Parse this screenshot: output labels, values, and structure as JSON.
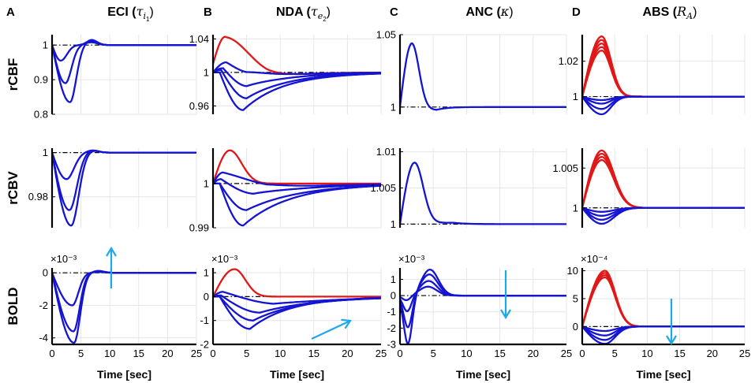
{
  "panel_labels": [
    "A",
    "B",
    "C",
    "D"
  ],
  "column_titles": [
    {
      "text": "ECI (",
      "sym": "τ",
      "sub": "i",
      "subsub": "1",
      "close": ")"
    },
    {
      "text": "NDA (",
      "sym": "τ",
      "sub": "e",
      "subsub": "2",
      "close": ")"
    },
    {
      "text": "ANC (",
      "sym": "κ",
      "sub": "",
      "subsub": "",
      "close": ")"
    },
    {
      "text": "ABS (",
      "sym": "R",
      "sub": "A",
      "subsub": "",
      "close": ")"
    }
  ],
  "row_labels": [
    "rCBF",
    "rCBV",
    "BOLD"
  ],
  "xlabel": "Time [sec]",
  "colors": {
    "blue": "#1414d2",
    "red": "#e01818",
    "arrow": "#1ea8e8",
    "grid": "#e6e6e6"
  },
  "chart_data": [
    {
      "id": "A-rCBF",
      "type": "line",
      "title": "ECI (τi1)",
      "ylabel": "rCBF",
      "xlim": [
        0,
        25
      ],
      "ylim": [
        0.8,
        1.03
      ],
      "yticks": [
        "0.8",
        "0.9",
        "1"
      ],
      "ytick_values": [
        0.8,
        0.9,
        1
      ],
      "xticks": [],
      "ref": 1,
      "exponent": "",
      "series": [
        {
          "color": "blue",
          "peak": -0.045,
          "peak_t": 1.5,
          "t0": 0,
          "over": 0.008,
          "over_t": 6.8,
          "tau": 1.5
        },
        {
          "color": "blue",
          "peak": -0.11,
          "peak_t": 2.3,
          "t0": 0,
          "over": 0.012,
          "over_t": 6.8,
          "tau": 1.5
        },
        {
          "color": "blue",
          "peak": -0.165,
          "peak_t": 3.1,
          "t0": 0,
          "over": 0.015,
          "over_t": 6.8,
          "tau": 1.5
        }
      ]
    },
    {
      "id": "B-rCBF",
      "type": "line",
      "title": "NDA (τe2)",
      "ylabel": "",
      "xlim": [
        0,
        25
      ],
      "ylim": [
        0.95,
        1.045
      ],
      "yticks": [
        "0.96",
        "1",
        "1.04"
      ],
      "ytick_values": [
        0.96,
        1,
        1.04
      ],
      "xticks": [],
      "ref": 1,
      "exponent": "",
      "series": [
        {
          "color": "red",
          "start": 1.01,
          "peak": 0.042,
          "peak_t": 2,
          "under": -0.006,
          "under_t": 8,
          "tau": 5
        },
        {
          "color": "blue",
          "start": 1.0,
          "peak": 0.012,
          "peak_t": 2,
          "under": -0.009,
          "under_t": 5,
          "tau": 6
        },
        {
          "color": "blue",
          "start": 1.0,
          "peak": 0.005,
          "peak_t": 1.5,
          "under": -0.02,
          "under_t": 5,
          "tau": 6
        },
        {
          "color": "blue",
          "start": 1.0,
          "peak": 0.003,
          "peak_t": 1.2,
          "under": -0.033,
          "under_t": 5,
          "tau": 6
        },
        {
          "color": "blue",
          "start": 1.0,
          "peak": 0.0,
          "peak_t": 1.0,
          "under": -0.045,
          "under_t": 4.5,
          "tau": 6
        }
      ]
    },
    {
      "id": "C-rCBF",
      "type": "line",
      "title": "ANC (κ)",
      "ylabel": "",
      "xlim": [
        0,
        25
      ],
      "ylim": [
        0.995,
        1.05
      ],
      "yticks": [
        "1",
        "1.05"
      ],
      "ytick_values": [
        1,
        1.05
      ],
      "xticks": [],
      "ref": 1,
      "exponent": "",
      "series": [
        {
          "color": "blue",
          "start": 1.0,
          "peak": 0.044,
          "peak_t": 1.8,
          "under": -0.002,
          "under_t": 5.5,
          "tau": 1.5
        }
      ]
    },
    {
      "id": "D-rCBF",
      "type": "line",
      "title": "ABS (RA)",
      "ylabel": "",
      "xlim": [
        0,
        25
      ],
      "ylim": [
        0.99,
        1.035
      ],
      "yticks": [
        "1",
        "1.02"
      ],
      "ytick_values": [
        1,
        1.02
      ],
      "xticks": [],
      "ref": 1,
      "exponent": "",
      "series": [
        {
          "color": "red",
          "start": 1.0,
          "peak": 0.034,
          "peak_t": 3,
          "tau": 2
        },
        {
          "color": "red",
          "start": 1.0,
          "peak": 0.032,
          "peak_t": 3,
          "tau": 2
        },
        {
          "color": "red",
          "start": 1.0,
          "peak": 0.03,
          "peak_t": 3,
          "tau": 2
        },
        {
          "color": "red",
          "start": 1.0,
          "peak": 0.028,
          "peak_t": 3,
          "tau": 2
        },
        {
          "color": "red",
          "start": 1.0,
          "peak": 0.026,
          "peak_t": 3,
          "tau": 2
        },
        {
          "color": "blue",
          "start": 1.0,
          "peak": -0.002,
          "peak_t": 3,
          "tau": 2
        },
        {
          "color": "blue",
          "start": 1.0,
          "peak": -0.004,
          "peak_t": 3,
          "tau": 2
        },
        {
          "color": "blue",
          "start": 1.0,
          "peak": -0.007,
          "peak_t": 3,
          "tau": 2
        },
        {
          "color": "blue",
          "start": 1.0,
          "peak": -0.01,
          "peak_t": 3,
          "tau": 2
        }
      ]
    },
    {
      "id": "A-rCBV",
      "type": "line",
      "title": "",
      "ylabel": "rCBV",
      "xlim": [
        0,
        25
      ],
      "ylim": [
        0.966,
        1.002
      ],
      "yticks": [
        "0.98",
        "1"
      ],
      "ytick_values": [
        0.98,
        1
      ],
      "xticks": [],
      "ref": 1,
      "exponent": "",
      "series": [
        {
          "color": "blue",
          "start": 1.0,
          "peak": -0.012,
          "peak_t": 2.5,
          "over": 0.001,
          "over_t": 7,
          "tau": 1.8
        },
        {
          "color": "blue",
          "start": 1.0,
          "peak": -0.026,
          "peak_t": 3.0,
          "over": 0.001,
          "over_t": 7,
          "tau": 1.8
        },
        {
          "color": "blue",
          "start": 1.0,
          "peak": -0.033,
          "peak_t": 3.3,
          "over": 0.001,
          "over_t": 7,
          "tau": 1.8
        }
      ]
    },
    {
      "id": "B-rCBV",
      "type": "line",
      "title": "",
      "ylabel": "",
      "xlim": [
        0,
        25
      ],
      "ylim": [
        0.99,
        1.008
      ],
      "yticks": [
        "0.99",
        "1"
      ],
      "ytick_values": [
        0.99,
        1
      ],
      "xticks": [],
      "ref": 1,
      "exponent": "",
      "series": [
        {
          "color": "red",
          "start": 1.0,
          "peak": 0.0075,
          "peak_t": 2.5,
          "tau": 2.5
        },
        {
          "color": "blue",
          "start": 1.0,
          "peak": 0.0025,
          "peak_t": 1.5,
          "under": -0.0015,
          "under_t": 8,
          "tau": 8
        },
        {
          "color": "blue",
          "start": 1.0,
          "peak": 0.001,
          "peak_t": 1.2,
          "under": -0.003,
          "under_t": 6,
          "tau": 8
        },
        {
          "color": "blue",
          "start": 1.0,
          "peak": 0.0,
          "peak_t": 1.0,
          "under": -0.006,
          "under_t": 5,
          "tau": 8
        },
        {
          "color": "blue",
          "start": 1.0,
          "peak": 0.0,
          "peak_t": 1.0,
          "under": -0.0095,
          "under_t": 4.5,
          "tau": 7
        }
      ]
    },
    {
      "id": "C-rCBV",
      "type": "line",
      "title": "",
      "ylabel": "",
      "xlim": [
        0,
        25
      ],
      "ylim": [
        0.9995,
        1.0105
      ],
      "yticks": [
        "1",
        "1.005",
        "1.01"
      ],
      "ytick_values": [
        1,
        1.005,
        1.01
      ],
      "xticks": [],
      "ref": 1,
      "exponent": "",
      "series": [
        {
          "color": "blue",
          "start": 1.0,
          "peak": 0.0085,
          "peak_t": 2.2,
          "under": 0.0002,
          "under_t": 8,
          "tau": 1.8
        }
      ]
    },
    {
      "id": "D-rCBV",
      "type": "line",
      "title": "",
      "ylabel": "",
      "xlim": [
        0,
        25
      ],
      "ylim": [
        0.9975,
        1.0075
      ],
      "yticks": [
        "1",
        "1.005"
      ],
      "ytick_values": [
        1,
        1.005
      ],
      "xticks": [],
      "ref": 1,
      "exponent": "",
      "series": [
        {
          "color": "red",
          "start": 1.0,
          "peak": 0.0072,
          "peak_t": 3,
          "tau": 2.6
        },
        {
          "color": "red",
          "start": 1.0,
          "peak": 0.0068,
          "peak_t": 3,
          "tau": 2.6
        },
        {
          "color": "red",
          "start": 1.0,
          "peak": 0.0064,
          "peak_t": 3,
          "tau": 2.6
        },
        {
          "color": "red",
          "start": 1.0,
          "peak": 0.006,
          "peak_t": 3,
          "tau": 2.6
        },
        {
          "color": "blue",
          "start": 1.0,
          "peak": -0.0005,
          "peak_t": 3,
          "tau": 2.6
        },
        {
          "color": "blue",
          "start": 1.0,
          "peak": -0.001,
          "peak_t": 3,
          "tau": 2.6
        },
        {
          "color": "blue",
          "start": 1.0,
          "peak": -0.0015,
          "peak_t": 3,
          "tau": 2.6
        },
        {
          "color": "blue",
          "start": 1.0,
          "peak": -0.002,
          "peak_t": 3,
          "tau": 2.6
        }
      ]
    },
    {
      "id": "A-BOLD",
      "type": "line",
      "title": "",
      "ylabel": "BOLD",
      "xlim": [
        0,
        25
      ],
      "ylim": [
        -4.4,
        0.3
      ],
      "yticks": [
        "-4",
        "-2",
        "0"
      ],
      "ytick_values": [
        -4,
        -2,
        0
      ],
      "xticks": [
        "0",
        "5",
        "10",
        "15",
        "20",
        "25"
      ],
      "ref": 0,
      "exponent": "×10⁻³",
      "series": [
        {
          "color": "blue",
          "start": 0,
          "peak": -2.0,
          "peak_t": 3.5,
          "over": 0.05,
          "over_t": 8,
          "tau": 1.5
        },
        {
          "color": "blue",
          "start": 0,
          "peak": -3.6,
          "peak_t": 3.7,
          "over": 0.1,
          "over_t": 8,
          "tau": 1.5
        },
        {
          "color": "blue",
          "start": 0,
          "peak": -4.3,
          "peak_t": 3.8,
          "over": 0.12,
          "over_t": 8,
          "tau": 1.5
        }
      ]
    },
    {
      "id": "B-BOLD",
      "type": "line",
      "title": "",
      "ylabel": "",
      "xlim": [
        0,
        25
      ],
      "ylim": [
        -2,
        1.2
      ],
      "yticks": [
        "-2",
        "-1",
        "0",
        "1"
      ],
      "ytick_values": [
        -2,
        -1,
        0,
        1
      ],
      "xticks": [
        "0",
        "5",
        "10",
        "15",
        "20",
        "25"
      ],
      "ref": 0,
      "exponent": "×10⁻³",
      "series": [
        {
          "color": "red",
          "start": 0,
          "peak": 1.15,
          "peak_t": 3.2,
          "tau": 2.3
        },
        {
          "color": "blue",
          "start": 0,
          "peak": 0.2,
          "peak_t": 1.5,
          "under": -0.4,
          "under_t": 9,
          "tau": 9
        },
        {
          "color": "blue",
          "start": 0,
          "peak": 0.05,
          "peak_t": 1.2,
          "under": -0.7,
          "under_t": 7,
          "tau": 8
        },
        {
          "color": "blue",
          "start": 0,
          "peak": 0.0,
          "peak_t": 1.0,
          "under": -1.0,
          "under_t": 6,
          "tau": 7
        },
        {
          "color": "blue",
          "start": 0,
          "peak": 0.0,
          "peak_t": 1.0,
          "under": -1.35,
          "under_t": 5.5,
          "tau": 6
        }
      ]
    },
    {
      "id": "C-BOLD",
      "type": "line",
      "title": "",
      "ylabel": "",
      "xlim": [
        0,
        25
      ],
      "ylim": [
        -3,
        1.7
      ],
      "yticks": [
        "-3",
        "-2",
        "-1",
        "0",
        "1"
      ],
      "ytick_values": [
        -3,
        -2,
        -1,
        0,
        1
      ],
      "xticks": [
        "0",
        "5",
        "10",
        "15",
        "20",
        "25"
      ],
      "ref": 0,
      "exponent": "×10⁻³",
      "series": [
        {
          "color": "blue",
          "start": 0,
          "dip": -3.0,
          "dip_t": 1.2,
          "peak": 1.6,
          "peak_t": 4.5,
          "tau": 1.6
        },
        {
          "color": "blue",
          "start": 0,
          "dip": -2.0,
          "dip_t": 1.2,
          "peak": 1.3,
          "peak_t": 4.4,
          "tau": 1.6
        },
        {
          "color": "blue",
          "start": 0,
          "dip": -1.0,
          "dip_t": 1.1,
          "peak": 0.9,
          "peak_t": 4.3,
          "tau": 1.6
        },
        {
          "color": "blue",
          "start": 0,
          "dip": -0.3,
          "dip_t": 1.0,
          "peak": 0.55,
          "peak_t": 4.2,
          "tau": 1.6
        }
      ]
    },
    {
      "id": "D-BOLD",
      "type": "line",
      "title": "",
      "ylabel": "",
      "xlim": [
        0,
        25
      ],
      "ylim": [
        -3.2,
        10.5
      ],
      "yticks": [
        "0",
        "5",
        "10"
      ],
      "ytick_values": [
        0,
        5,
        10
      ],
      "xticks": [
        "0",
        "5",
        "10",
        "15",
        "20",
        "25"
      ],
      "ref": 0,
      "exponent": "×10⁻⁴",
      "series": [
        {
          "color": "red",
          "start": 0,
          "peak": 10.0,
          "peak_t": 3.5,
          "tau": 2.2
        },
        {
          "color": "red",
          "start": 0,
          "peak": 9.6,
          "peak_t": 3.5,
          "tau": 2.2
        },
        {
          "color": "red",
          "start": 0,
          "peak": 9.2,
          "peak_t": 3.5,
          "tau": 2.2
        },
        {
          "color": "red",
          "start": 0,
          "peak": 8.8,
          "peak_t": 3.5,
          "tau": 2.2
        },
        {
          "color": "blue",
          "start": 0,
          "peak": -0.8,
          "peak_t": 3.5,
          "tau": 2.2
        },
        {
          "color": "blue",
          "start": 0,
          "peak": -1.6,
          "peak_t": 3.5,
          "tau": 2.2
        },
        {
          "color": "blue",
          "start": 0,
          "peak": -2.4,
          "peak_t": 3.5,
          "tau": 2.2
        },
        {
          "color": "blue",
          "start": 0,
          "peak": -3.1,
          "peak_t": 3.5,
          "tau": 2.2
        }
      ]
    }
  ]
}
